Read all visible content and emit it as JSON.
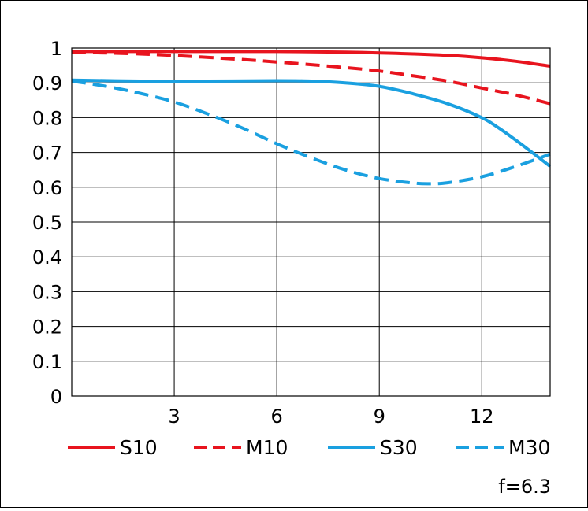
{
  "chart_data": {
    "type": "line",
    "title": "",
    "xlabel": "",
    "ylabel": "",
    "xlim": [
      0,
      14
    ],
    "ylim": [
      0,
      1
    ],
    "x_ticks": [
      3,
      6,
      9,
      12
    ],
    "y_ticks": [
      "0",
      "0.1",
      "0.2",
      "0.3",
      "0.4",
      "0.5",
      "0.6",
      "0.7",
      "0.8",
      "0.9",
      "1"
    ],
    "grid": true,
    "legend_position": "bottom",
    "series": [
      {
        "name": "S10",
        "color": "#e8141e",
        "dash": "solid",
        "x": [
          0,
          2,
          4,
          6,
          8,
          9,
          10,
          11,
          12,
          13,
          14
        ],
        "y": [
          0.99,
          0.99,
          0.99,
          0.99,
          0.988,
          0.986,
          0.983,
          0.979,
          0.972,
          0.962,
          0.948
        ]
      },
      {
        "name": "M10",
        "color": "#e8141e",
        "dash": "dashed",
        "x": [
          0,
          2,
          4,
          6,
          8,
          9,
          10,
          11,
          12,
          13,
          14
        ],
        "y": [
          0.988,
          0.983,
          0.973,
          0.96,
          0.944,
          0.934,
          0.92,
          0.905,
          0.885,
          0.865,
          0.84
        ]
      },
      {
        "name": "S30",
        "color": "#1aa0e0",
        "dash": "solid",
        "x": [
          0,
          2,
          4,
          6,
          7,
          8,
          9,
          10,
          11,
          12,
          12.5,
          13,
          13.5,
          14
        ],
        "y": [
          0.908,
          0.905,
          0.905,
          0.906,
          0.905,
          0.9,
          0.89,
          0.868,
          0.84,
          0.8,
          0.77,
          0.735,
          0.698,
          0.66
        ]
      },
      {
        "name": "M30",
        "color": "#1aa0e0",
        "dash": "dashed",
        "x": [
          0,
          1,
          2,
          3,
          4,
          5,
          6,
          7,
          8,
          9,
          10,
          10.5,
          11,
          12,
          13,
          14
        ],
        "y": [
          0.905,
          0.89,
          0.87,
          0.845,
          0.81,
          0.77,
          0.725,
          0.685,
          0.65,
          0.625,
          0.612,
          0.61,
          0.613,
          0.63,
          0.66,
          0.695
        ]
      }
    ]
  },
  "footnote": "f=6.3"
}
